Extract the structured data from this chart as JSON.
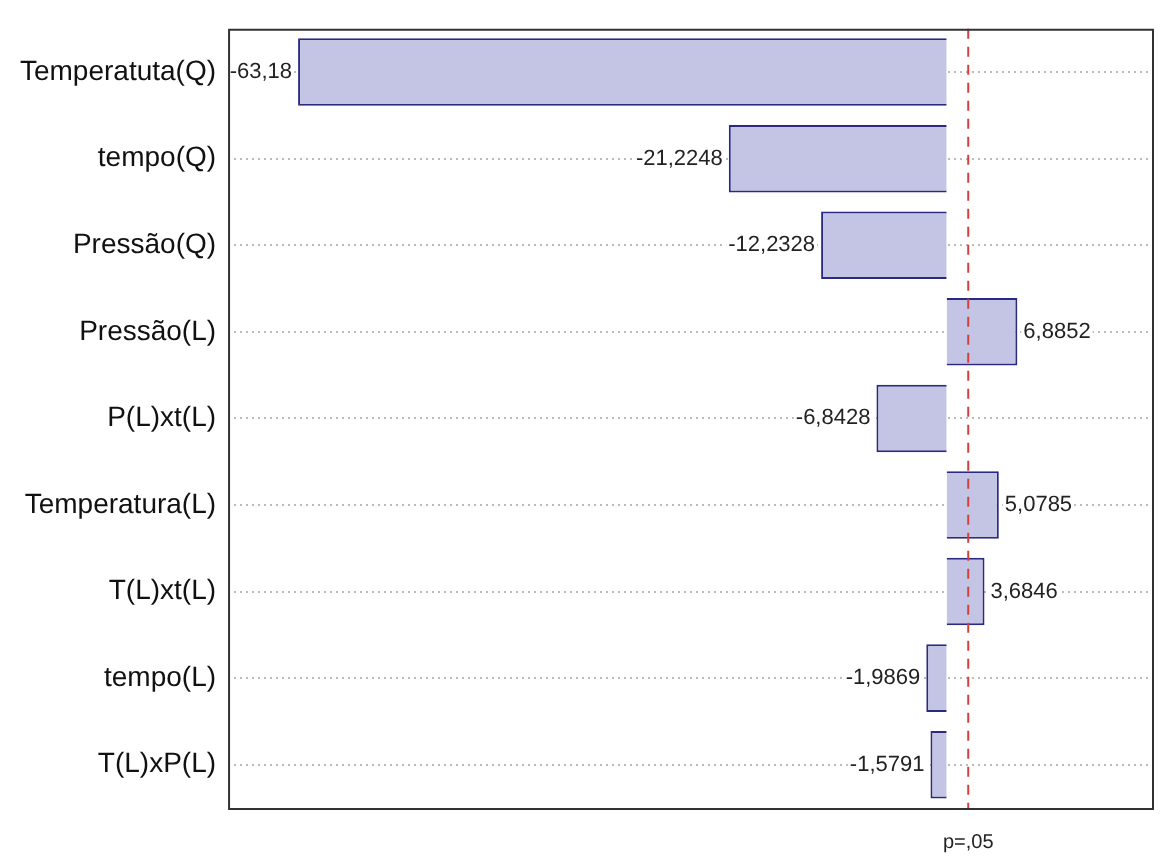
{
  "chart_data": {
    "type": "bar",
    "orientation": "horizontal",
    "categories": [
      "Temperatuta(Q)",
      "tempo(Q)",
      "Pressão(Q)",
      "Pressão(L)",
      "P(L)xt(L)",
      "Temperatura(L)",
      "T(L)xt(L)",
      "tempo(L)",
      "T(L)xP(L)"
    ],
    "values": [
      -63.18,
      -21.2248,
      -12.2328,
      6.8852,
      -6.8428,
      5.0785,
      3.6846,
      -1.9869,
      -1.5791
    ],
    "value_labels": [
      "-63,18",
      "-21,2248",
      "-12,2328",
      "6,8852",
      "-6,8428",
      "5,0785",
      "3,6846",
      "-1,9869",
      "-1,5791"
    ],
    "color": "#c4c4e4",
    "ref_lines": [
      {
        "axis": "x",
        "value": 2.1,
        "label": "p=,05",
        "color": "#d04040",
        "line_style": "dashed"
      }
    ],
    "grid": "y",
    "tick_labels": "y"
  }
}
